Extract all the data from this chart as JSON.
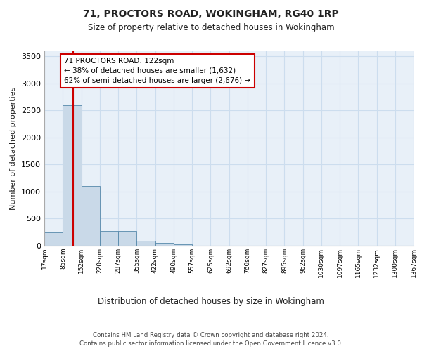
{
  "title1": "71, PROCTORS ROAD, WOKINGHAM, RG40 1RP",
  "title2": "Size of property relative to detached houses in Wokingham",
  "xlabel": "Distribution of detached houses by size in Wokingham",
  "ylabel": "Number of detached properties",
  "footer1": "Contains HM Land Registry data © Crown copyright and database right 2024.",
  "footer2": "Contains public sector information licensed under the Open Government Licence v3.0.",
  "annotation_line1": "71 PROCTORS ROAD: 122sqm",
  "annotation_line2": "← 38% of detached houses are smaller (1,632)",
  "annotation_line3": "62% of semi-detached houses are larger (2,676) →",
  "property_size": 122,
  "bar_edges": [
    17,
    85,
    152,
    220,
    287,
    355,
    422,
    490,
    557,
    625,
    692,
    760,
    827,
    895,
    962,
    1030,
    1097,
    1165,
    1232,
    1300,
    1367
  ],
  "bar_heights": [
    250,
    2600,
    1100,
    270,
    270,
    90,
    50,
    20,
    0,
    0,
    0,
    0,
    0,
    0,
    0,
    0,
    0,
    0,
    0,
    0
  ],
  "bar_color": "#c9d9e8",
  "bar_edge_color": "#5588aa",
  "vline_color": "#cc0000",
  "grid_color": "#ccddee",
  "bg_color": "#e8f0f8",
  "ylim": [
    0,
    3600
  ],
  "yticks": [
    0,
    500,
    1000,
    1500,
    2000,
    2500,
    3000,
    3500
  ],
  "tick_labels": [
    "17sqm",
    "85sqm",
    "152sqm",
    "220sqm",
    "287sqm",
    "355sqm",
    "422sqm",
    "490sqm",
    "557sqm",
    "625sqm",
    "692sqm",
    "760sqm",
    "827sqm",
    "895sqm",
    "962sqm",
    "1030sqm",
    "1097sqm",
    "1165sqm",
    "1232sqm",
    "1300sqm",
    "1367sqm"
  ]
}
